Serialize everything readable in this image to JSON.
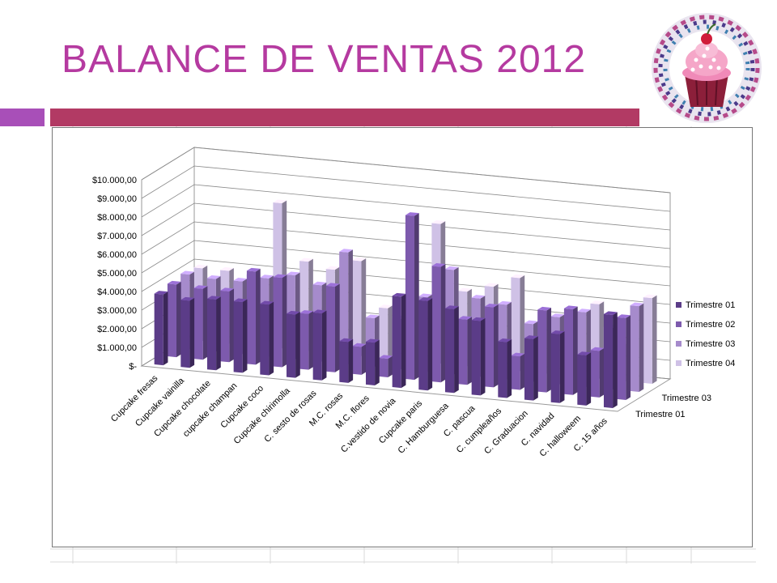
{
  "slide": {
    "title": "BALANCE DE VENTAS 2012",
    "colors": {
      "title": "#b53aa0",
      "accent_square": "#a84fb8",
      "accent_bar": "#b23a64"
    },
    "decoration_icon": "cupcake-icon"
  },
  "chart_data": {
    "type": "bar",
    "subtype": "3d-clustered-column",
    "title": "",
    "xlabel": "",
    "ylabel": "",
    "ylim": [
      0,
      10000
    ],
    "y_ticks": [
      "$-",
      "$1.000,00",
      "$2.000,00",
      "$3.000,00",
      "$4.000,00",
      "$5.000,00",
      "$6.000,00",
      "$7.000,00",
      "$8.000,00",
      "$9.000,00",
      "$10.000,00"
    ],
    "depth_axis_labels": [
      "Trimestre 01",
      "Trimestre 03"
    ],
    "grid": true,
    "legend_position": "right",
    "categories": [
      "Cupcake fresas",
      "Cupcake vainilla",
      "Cupcake chocolate",
      "cupcake champan",
      "Cupcake coco",
      "Cupcake chirimolla",
      "C. sesto de rosas",
      "M.C. rosas",
      "M.C. flores",
      "C.vestido de novia",
      "Cupcake paris",
      "C. Hamburguesa",
      "C. pascua",
      "C. cumpleaños",
      "C. Graduacion",
      "C. navidad",
      "C. halloweem",
      "C. 15 años"
    ],
    "series": [
      {
        "name": "Trimestre 01",
        "color": "#5b3c88",
        "values": [
          3800,
          3600,
          3800,
          3800,
          3800,
          3400,
          3600,
          2200,
          2300,
          4900,
          4800,
          4500,
          4000,
          3000,
          3300,
          3700,
          2700,
          5000
        ]
      },
      {
        "name": "Trimestre 02",
        "color": "#7d5aad",
        "values": [
          3900,
          3800,
          3800,
          5000,
          4800,
          3000,
          4600,
          1500,
          1000,
          8800,
          6200,
          3500,
          4300,
          1800,
          4400,
          4600,
          2500,
          4400
        ]
      },
      {
        "name": "Trimestre 03",
        "color": "#a68bcc",
        "values": [
          4000,
          3900,
          3900,
          4200,
          4500,
          4100,
          6000,
          2600,
          2700,
          4000,
          5600,
          4200,
          4000,
          3100,
          3600,
          4000,
          3300,
          4600
        ]
      },
      {
        "name": "Trimestre 04",
        "color": "#cfc1e6",
        "values": [
          3900,
          3900,
          3800,
          7800,
          4800,
          4500,
          5100,
          2700,
          1400,
          7500,
          4000,
          4400,
          5000,
          3300,
          3400,
          4000,
          2000,
          4600
        ]
      }
    ]
  }
}
